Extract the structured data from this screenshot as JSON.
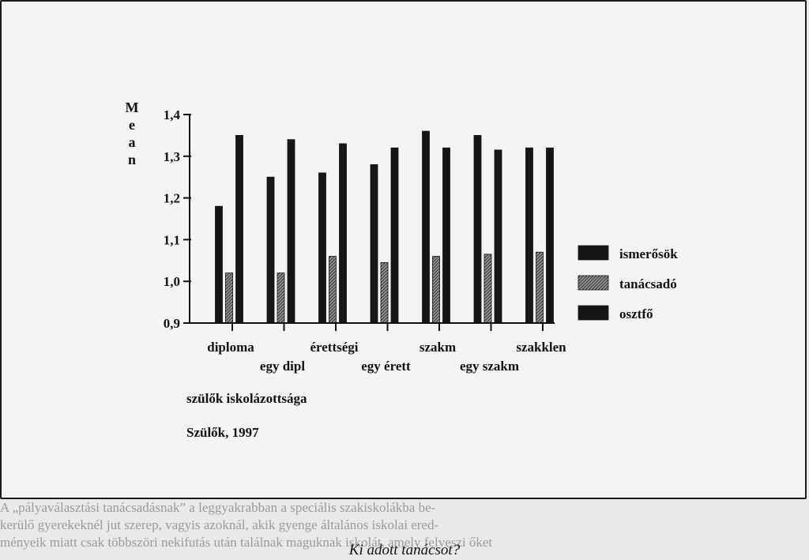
{
  "chart_data": {
    "type": "bar",
    "ylabel": "Mean",
    "ylim": [
      0.9,
      1.4
    ],
    "yticks": [
      "0,9",
      "1,0",
      "1,1",
      "1,2",
      "1,3",
      "1,4"
    ],
    "categories": [
      "diploma",
      "egy dipl",
      "érettségi",
      "egy érett",
      "szakm",
      "egy szakm",
      "szakklen"
    ],
    "category_label_rows": [
      "upper",
      "lower",
      "upper",
      "lower",
      "upper",
      "lower",
      "upper"
    ],
    "xlabel": "szülők iskolázottsága",
    "subtitle": "Szülők, 1997",
    "series": [
      {
        "name": "ismerősök",
        "values": [
          1.18,
          1.25,
          1.26,
          1.28,
          1.36,
          1.35,
          1.32
        ],
        "color": "#161616",
        "pattern": "solid"
      },
      {
        "name": "tanácsadó",
        "values": [
          1.02,
          1.02,
          1.06,
          1.045,
          1.06,
          1.065,
          1.07
        ],
        "color": "#7a7a7a",
        "pattern": "hatched"
      },
      {
        "name": "osztfő",
        "values": [
          1.35,
          1.34,
          1.33,
          1.32,
          1.32,
          1.315,
          1.32
        ],
        "color": "#161616",
        "pattern": "solid"
      }
    ],
    "legend_position": "right",
    "grid": false
  },
  "background_text": {
    "line1": "A „pályaválasztási tanácsadásnak” a leggyakrabban a speciális szakiskolákba be-",
    "line2": "kerülő gyerekeknél jut szerep, vagyis azoknál, akik gyenge általános iskolai ered-",
    "line3": "ményeik miatt csak többszöri nekifutás után találnak maguknak iskolát, amely felveszi őket"
  },
  "caption": "Ki adott tanácsot?"
}
